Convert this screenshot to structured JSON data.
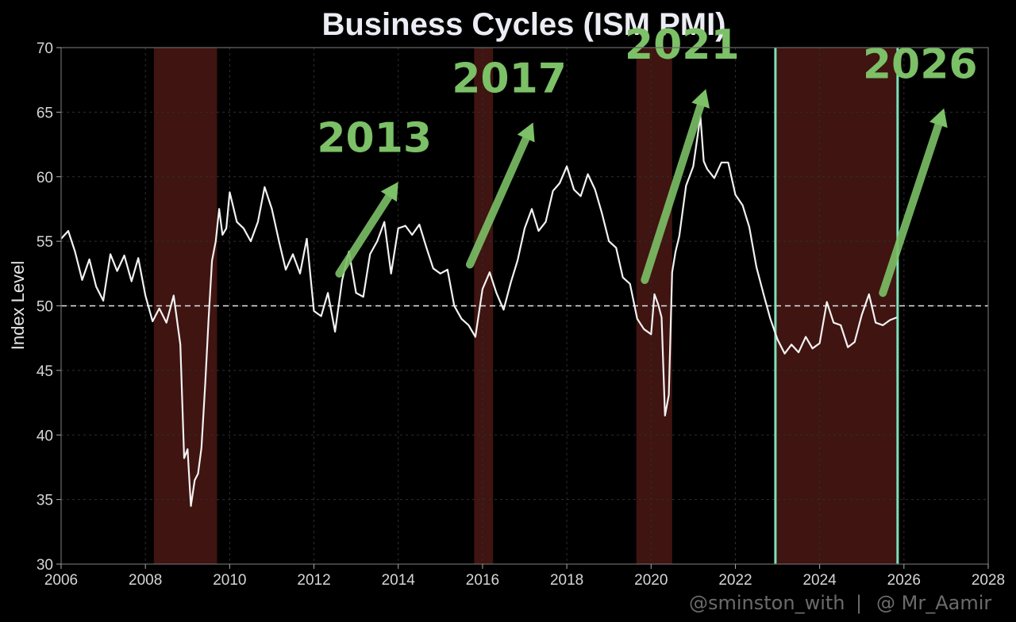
{
  "chart_data": {
    "type": "line",
    "title": "Business Cycles (ISM PMI)",
    "ylabel": "Index Level",
    "xlabel": "",
    "xlim": [
      2006,
      2028
    ],
    "ylim": [
      30,
      70
    ],
    "x_ticks": [
      "2006",
      "2008",
      "2010",
      "2012",
      "2014",
      "2016",
      "2018",
      "2020",
      "2022",
      "2024",
      "2026",
      "2028"
    ],
    "y_ticks": [
      "30",
      "35",
      "40",
      "45",
      "50",
      "55",
      "60",
      "65",
      "70"
    ],
    "grid": true,
    "reference_line": 50,
    "colors": {
      "background": "#000000",
      "line": "#f2f2f2",
      "band": "#4a1714",
      "cycle_marker": "#7fe0b8",
      "annotation": "#7cc067"
    },
    "shaded_periods": [
      [
        2008.2,
        2009.7
      ],
      [
        2015.8,
        2016.25
      ],
      [
        2019.65,
        2020.5
      ],
      [
        2022.95,
        2025.85
      ]
    ],
    "cycle_markers": [
      2022.95,
      2025.85
    ],
    "annotations": [
      {
        "label": "2013",
        "arrow_from": [
          2012.6,
          52.5
        ],
        "arrow_to": [
          2014.0,
          59.6
        ]
      },
      {
        "label": "2017",
        "arrow_from": [
          2015.7,
          53.2
        ],
        "arrow_to": [
          2017.2,
          64.2
        ]
      },
      {
        "label": "2021",
        "arrow_from": [
          2019.85,
          52.0
        ],
        "arrow_to": [
          2021.3,
          66.8
        ]
      },
      {
        "label": "2026",
        "arrow_from": [
          2025.5,
          51.0
        ],
        "arrow_to": [
          2026.95,
          65.3
        ]
      }
    ],
    "series": [
      {
        "x": [
          2006.0,
          2006.17,
          2006.33,
          2006.5,
          2006.67,
          2006.83,
          2007.0,
          2007.17,
          2007.33,
          2007.5,
          2007.67,
          2007.83,
          2008.0,
          2008.17,
          2008.33,
          2008.5,
          2008.67,
          2008.83,
          2008.92,
          2009.0,
          2009.08,
          2009.17,
          2009.25,
          2009.33,
          2009.42,
          2009.5,
          2009.58,
          2009.67,
          2009.75,
          2009.83,
          2009.92,
          2010.0,
          2010.17,
          2010.33,
          2010.5,
          2010.67,
          2010.83,
          2011.0,
          2011.17,
          2011.33,
          2011.5,
          2011.67,
          2011.83,
          2012.0,
          2012.17,
          2012.33,
          2012.5,
          2012.67,
          2012.83,
          2013.0,
          2013.17,
          2013.33,
          2013.5,
          2013.67,
          2013.83,
          2014.0,
          2014.17,
          2014.33,
          2014.5,
          2014.67,
          2014.83,
          2015.0,
          2015.17,
          2015.33,
          2015.5,
          2015.67,
          2015.83,
          2016.0,
          2016.17,
          2016.33,
          2016.5,
          2016.67,
          2016.83,
          2017.0,
          2017.17,
          2017.33,
          2017.5,
          2017.67,
          2017.83,
          2018.0,
          2018.17,
          2018.33,
          2018.5,
          2018.67,
          2018.83,
          2019.0,
          2019.17,
          2019.33,
          2019.5,
          2019.67,
          2019.83,
          2020.0,
          2020.08,
          2020.17,
          2020.25,
          2020.33,
          2020.42,
          2020.5,
          2020.58,
          2020.67,
          2020.83,
          2021.0,
          2021.17,
          2021.25,
          2021.33,
          2021.5,
          2021.67,
          2021.83,
          2022.0,
          2022.17,
          2022.33,
          2022.5,
          2022.67,
          2022.83,
          2023.0,
          2023.17,
          2023.33,
          2023.5,
          2023.67,
          2023.83,
          2024.0,
          2024.17,
          2024.33,
          2024.5,
          2024.67,
          2024.83,
          2025.0,
          2025.17,
          2025.33,
          2025.5,
          2025.67,
          2025.83
        ],
        "y": [
          55.2,
          55.8,
          54.2,
          52.0,
          53.6,
          51.5,
          50.4,
          54.0,
          52.7,
          53.9,
          51.9,
          53.7,
          50.8,
          48.8,
          49.8,
          48.7,
          50.8,
          47.0,
          38.2,
          38.9,
          34.5,
          36.5,
          37.0,
          39.0,
          44.0,
          49.0,
          53.5,
          55.0,
          57.5,
          55.5,
          56.0,
          58.8,
          56.5,
          56.0,
          55.0,
          56.5,
          59.2,
          57.5,
          55.0,
          52.8,
          54.0,
          52.5,
          55.2,
          49.6,
          49.2,
          51.0,
          48.0,
          52.0,
          54.2,
          51.0,
          50.7,
          54.0,
          55.0,
          56.5,
          52.5,
          56.0,
          56.2,
          55.5,
          56.3,
          54.5,
          52.9,
          52.5,
          52.8,
          50.0,
          49.0,
          48.5,
          47.6,
          51.3,
          52.6,
          51.0,
          49.7,
          51.8,
          53.5,
          56.0,
          57.5,
          55.8,
          56.5,
          58.9,
          59.5,
          60.8,
          59.0,
          58.5,
          60.2,
          59.0,
          57.2,
          55.0,
          54.5,
          52.2,
          51.7,
          49.0,
          48.2,
          47.8,
          50.9,
          50.1,
          49.1,
          41.5,
          43.1,
          52.6,
          54.2,
          55.4,
          59.3,
          60.8,
          64.7,
          61.2,
          60.6,
          59.9,
          61.1,
          61.1,
          58.6,
          57.8,
          56.1,
          53.0,
          50.9,
          49.0,
          47.4,
          46.3,
          47.0,
          46.4,
          47.6,
          46.7,
          47.1,
          50.3,
          48.7,
          48.5,
          46.8,
          47.2,
          49.3,
          50.9,
          48.7,
          48.5,
          48.9,
          49.1
        ]
      }
    ]
  },
  "watermark": {
    "left": "@sminston_with",
    "separator": "|",
    "right": "@ Mr_Aamir"
  }
}
